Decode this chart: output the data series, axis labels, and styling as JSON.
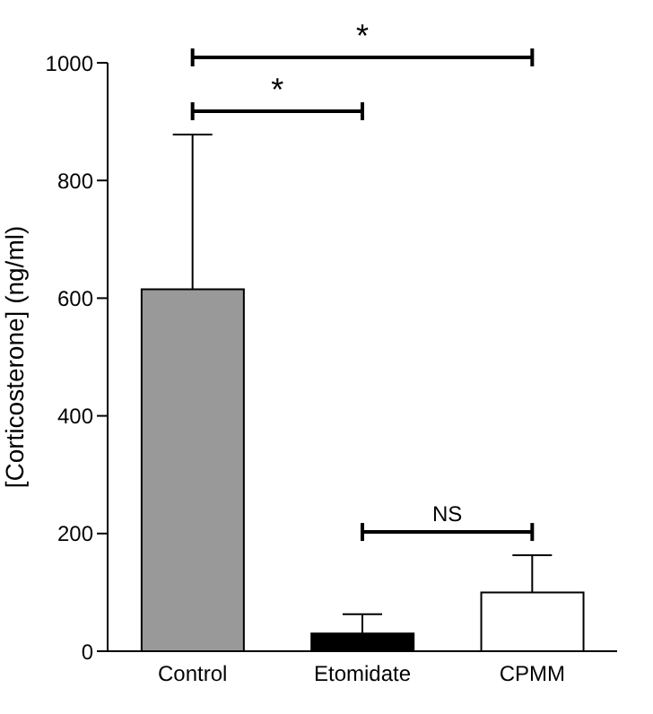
{
  "chart_data": {
    "type": "bar",
    "ylabel": "[Corticosterone] (ng/ml)",
    "categories": [
      "Control",
      "Etomidate",
      "CPMM"
    ],
    "values": [
      615,
      30,
      100
    ],
    "colors": [
      "#999999",
      "#000000",
      "#ffffff"
    ],
    "errors": [
      [
        615,
        878
      ],
      [
        30,
        63
      ],
      [
        100,
        163
      ]
    ],
    "ylim": [
      0,
      1000
    ],
    "yticks": [
      0,
      200,
      400,
      600,
      800,
      1000
    ],
    "annotations": [
      "*",
      "*",
      "NS"
    ]
  }
}
